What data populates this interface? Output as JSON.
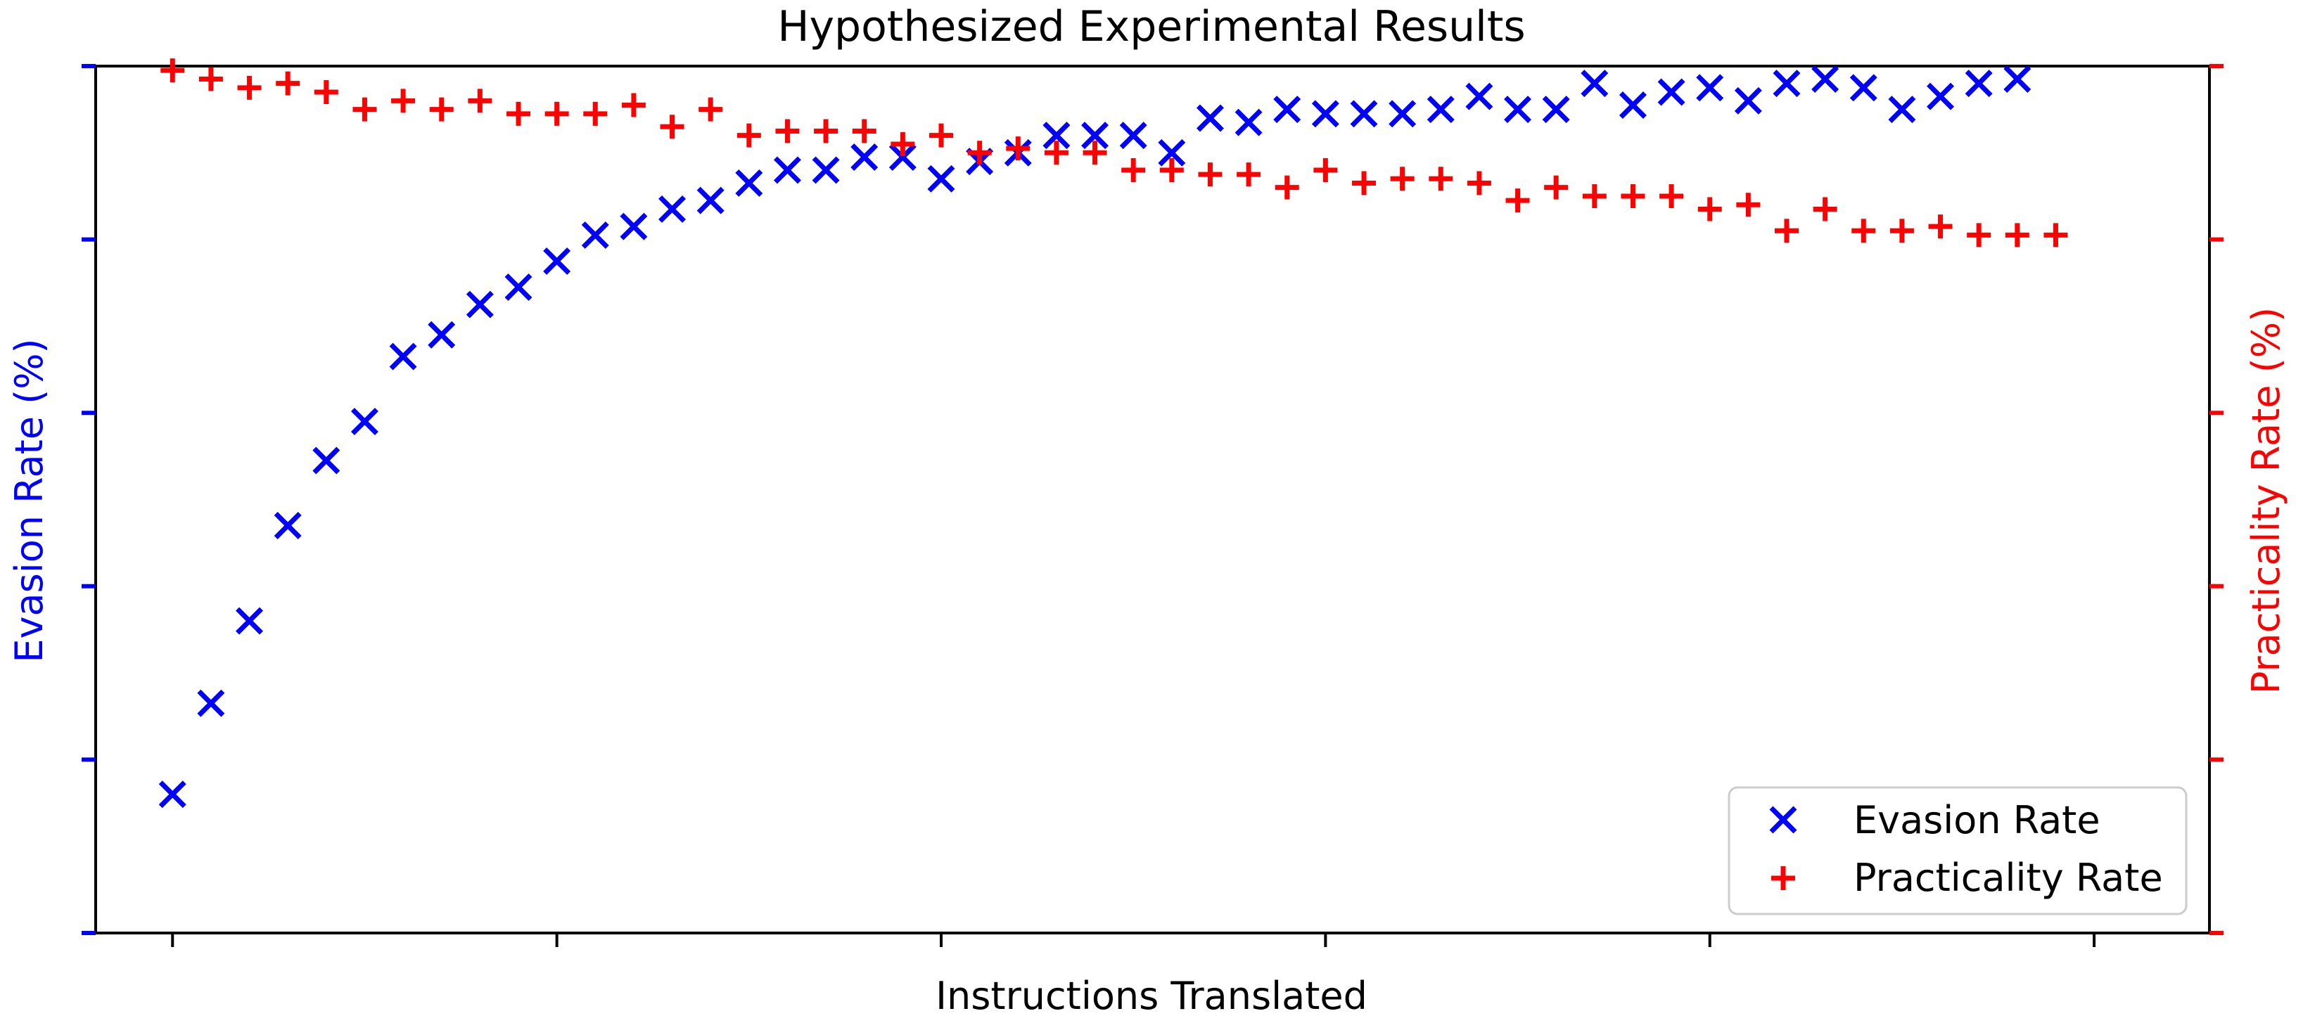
{
  "chart_data": {
    "type": "scatter",
    "title": "Hypothesized Experimental Results",
    "xlabel": "Instructions Translated",
    "ylabel_left": "Evasion Rate (%)",
    "ylabel_right": "Practicality Rate (%)",
    "grid": false,
    "legend_position": "bottom-right",
    "tick_labels_shown": false,
    "x_ticks": [
      1,
      11,
      21,
      31,
      41,
      51
    ],
    "xlim": [
      -1,
      54
    ],
    "ylim_left": [
      0,
      100
    ],
    "ylim_right": [
      0,
      100
    ],
    "y_ticks_left": [
      0,
      20,
      40,
      60,
      80,
      100
    ],
    "y_ticks_right": [
      0,
      20,
      40,
      60,
      80,
      100
    ],
    "series": [
      {
        "name": "Evasion Rate",
        "axis": "left",
        "marker": "x",
        "color": "#0000ff",
        "x": [
          1,
          2,
          3,
          4,
          5,
          6,
          7,
          8,
          9,
          10,
          11,
          12,
          13,
          14,
          15,
          16,
          17,
          18,
          19,
          20,
          21,
          22,
          23,
          24,
          25,
          26,
          27,
          28,
          29,
          30,
          31,
          32,
          33,
          34,
          35,
          36,
          37,
          38,
          39,
          40,
          41,
          42,
          43,
          44,
          45,
          46,
          47,
          48,
          49,
          50,
          51,
          52
        ],
        "y": [
          16,
          26.5,
          36,
          47,
          54.5,
          59,
          66.5,
          69,
          72.5,
          74.5,
          77.5,
          80.5,
          81.5,
          83.5,
          84.5,
          86.5,
          88,
          88,
          89.5,
          89.5,
          87,
          89,
          90,
          92,
          92,
          92,
          90,
          94,
          93.5,
          95,
          94.5,
          94.5,
          94.5,
          95,
          96.5,
          95,
          95,
          98,
          95.5,
          97,
          97.5,
          96,
          98,
          98.5,
          97.5,
          95,
          96.5,
          98,
          98.5,
          null,
          null,
          null
        ]
      },
      {
        "name": "Practicality Rate",
        "axis": "right",
        "marker": "+",
        "color": "#ff0000",
        "x": [
          1,
          2,
          3,
          4,
          5,
          6,
          7,
          8,
          9,
          10,
          11,
          12,
          13,
          14,
          15,
          16,
          17,
          18,
          19,
          20,
          21,
          22,
          23,
          24,
          25,
          26,
          27,
          28,
          29,
          30,
          31,
          32,
          33,
          34,
          35,
          36,
          37,
          38,
          39,
          40,
          41,
          42,
          43,
          44,
          45,
          46,
          47,
          48,
          49,
          50,
          51,
          52
        ],
        "y": [
          99.5,
          98.5,
          97.5,
          98,
          97,
          95,
          96,
          95,
          96,
          94.5,
          94.5,
          94.5,
          95.5,
          93,
          95,
          92,
          92.5,
          92.5,
          92.5,
          91,
          92,
          90,
          90.5,
          90,
          90,
          88,
          88,
          87.5,
          87.5,
          86,
          88,
          86.5,
          87,
          87,
          86.5,
          84.5,
          86,
          85,
          85,
          85,
          83.5,
          84,
          81,
          83.5,
          81,
          81,
          81.5,
          80.5,
          80.5,
          80.5,
          null,
          null
        ]
      }
    ]
  }
}
